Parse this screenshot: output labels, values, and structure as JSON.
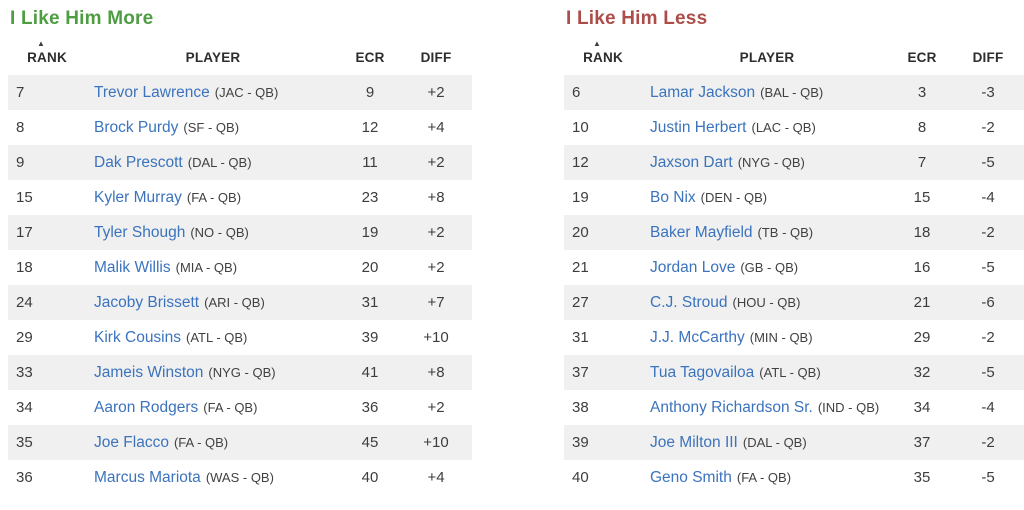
{
  "colors": {
    "more_title": "#4e9d43",
    "less_title": "#ad4d4a",
    "player_link": "#3b73bd",
    "row_stripe": "#f0f0f0",
    "header_text": "#2d2d2d",
    "body_text": "#3d3d3d"
  },
  "sort_ascending_icon": "▲",
  "columns": [
    "RANK",
    "PLAYER",
    "ECR",
    "DIFF"
  ],
  "tables": [
    {
      "id": "like-more",
      "title": "I Like Him More",
      "rows": [
        {
          "rank": "7",
          "player": "Trevor Lawrence",
          "team": "(JAC - QB)",
          "ecr": "9",
          "diff": "+2"
        },
        {
          "rank": "8",
          "player": "Brock Purdy",
          "team": "(SF - QB)",
          "ecr": "12",
          "diff": "+4"
        },
        {
          "rank": "9",
          "player": "Dak Prescott",
          "team": "(DAL - QB)",
          "ecr": "11",
          "diff": "+2"
        },
        {
          "rank": "15",
          "player": "Kyler Murray",
          "team": "(FA - QB)",
          "ecr": "23",
          "diff": "+8"
        },
        {
          "rank": "17",
          "player": "Tyler Shough",
          "team": "(NO - QB)",
          "ecr": "19",
          "diff": "+2"
        },
        {
          "rank": "18",
          "player": "Malik Willis",
          "team": "(MIA - QB)",
          "ecr": "20",
          "diff": "+2"
        },
        {
          "rank": "24",
          "player": "Jacoby Brissett",
          "team": "(ARI - QB)",
          "ecr": "31",
          "diff": "+7"
        },
        {
          "rank": "29",
          "player": "Kirk Cousins",
          "team": "(ATL - QB)",
          "ecr": "39",
          "diff": "+10"
        },
        {
          "rank": "33",
          "player": "Jameis Winston",
          "team": "(NYG - QB)",
          "ecr": "41",
          "diff": "+8"
        },
        {
          "rank": "34",
          "player": "Aaron Rodgers",
          "team": "(FA - QB)",
          "ecr": "36",
          "diff": "+2"
        },
        {
          "rank": "35",
          "player": "Joe Flacco",
          "team": "(FA - QB)",
          "ecr": "45",
          "diff": "+10"
        },
        {
          "rank": "36",
          "player": "Marcus Mariota",
          "team": "(WAS - QB)",
          "ecr": "40",
          "diff": "+4"
        }
      ]
    },
    {
      "id": "like-less",
      "title": "I Like Him Less",
      "rows": [
        {
          "rank": "6",
          "player": "Lamar Jackson",
          "team": "(BAL - QB)",
          "ecr": "3",
          "diff": "-3"
        },
        {
          "rank": "10",
          "player": "Justin Herbert",
          "team": "(LAC - QB)",
          "ecr": "8",
          "diff": "-2"
        },
        {
          "rank": "12",
          "player": "Jaxson Dart",
          "team": "(NYG - QB)",
          "ecr": "7",
          "diff": "-5"
        },
        {
          "rank": "19",
          "player": "Bo Nix",
          "team": "(DEN - QB)",
          "ecr": "15",
          "diff": "-4"
        },
        {
          "rank": "20",
          "player": "Baker Mayfield",
          "team": "(TB - QB)",
          "ecr": "18",
          "diff": "-2"
        },
        {
          "rank": "21",
          "player": "Jordan Love",
          "team": "(GB - QB)",
          "ecr": "16",
          "diff": "-5"
        },
        {
          "rank": "27",
          "player": "C.J. Stroud",
          "team": "(HOU - QB)",
          "ecr": "21",
          "diff": "-6"
        },
        {
          "rank": "31",
          "player": "J.J. McCarthy",
          "team": "(MIN - QB)",
          "ecr": "29",
          "diff": "-2"
        },
        {
          "rank": "37",
          "player": "Tua Tagovailoa",
          "team": "(ATL - QB)",
          "ecr": "32",
          "diff": "-5"
        },
        {
          "rank": "38",
          "player": "Anthony Richardson Sr.",
          "team": "(IND - QB)",
          "ecr": "34",
          "diff": "-4"
        },
        {
          "rank": "39",
          "player": "Joe Milton III",
          "team": "(DAL - QB)",
          "ecr": "37",
          "diff": "-2"
        },
        {
          "rank": "40",
          "player": "Geno Smith",
          "team": "(FA - QB)",
          "ecr": "35",
          "diff": "-5"
        }
      ]
    }
  ]
}
